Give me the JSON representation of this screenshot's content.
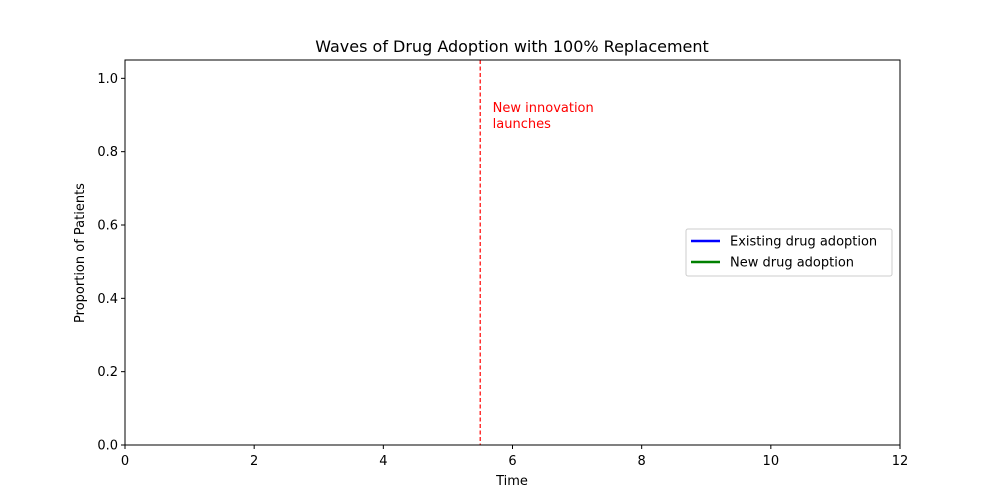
{
  "chart_data": {
    "type": "line",
    "title": "Waves of Drug Adoption with 100% Replacement",
    "xlabel": "Time",
    "ylabel": "Proportion of Patients",
    "xlim": [
      0,
      12
    ],
    "ylim": [
      0,
      1.05
    ],
    "xticks": [
      "0",
      "2",
      "4",
      "6",
      "8",
      "10",
      "12"
    ],
    "yticks": [
      "0.0",
      "0.2",
      "0.4",
      "0.6",
      "0.8",
      "1.0"
    ],
    "grid": false,
    "legend_position": "center-right",
    "series": [
      {
        "name": "Existing drug adoption",
        "color": "#0000ff",
        "x": [],
        "y": []
      },
      {
        "name": "New drug adoption",
        "color": "#008000",
        "x": [],
        "y": []
      }
    ],
    "annotations": [
      {
        "type": "vline",
        "x": 5.5,
        "color": "#ff0000",
        "style": "dashed"
      },
      {
        "type": "text",
        "lines": [
          "New innovation",
          "launches"
        ],
        "x": 5.6,
        "y": 0.9,
        "color": "#ff0000"
      }
    ]
  }
}
